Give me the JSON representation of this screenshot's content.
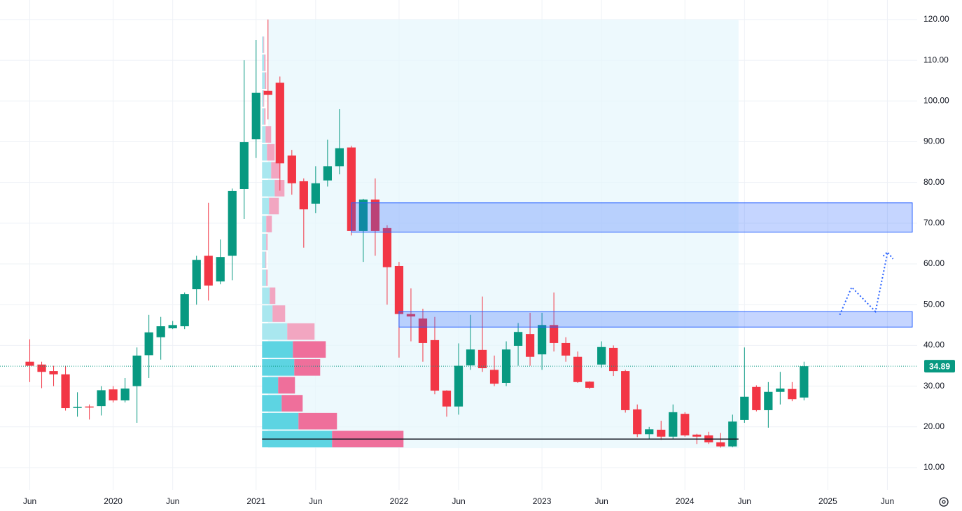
{
  "chart_data": {
    "type": "candlestick",
    "dates": [
      "2019-06",
      "2019-07",
      "2019-08",
      "2019-09",
      "2019-10",
      "2019-11",
      "2019-12",
      "2020-01",
      "2020-02",
      "2020-03",
      "2020-04",
      "2020-05",
      "2020-06",
      "2020-07",
      "2020-08",
      "2020-09",
      "2020-10",
      "2020-11",
      "2020-12",
      "2021-01",
      "2021-02",
      "2021-03",
      "2021-04",
      "2021-05",
      "2021-06",
      "2021-07",
      "2021-08",
      "2021-09",
      "2021-10",
      "2021-11",
      "2021-12",
      "2022-01",
      "2022-02",
      "2022-03",
      "2022-04",
      "2022-05",
      "2022-06",
      "2022-07",
      "2022-08",
      "2022-09",
      "2022-10",
      "2022-11",
      "2022-12",
      "2023-01",
      "2023-02",
      "2023-03",
      "2023-04",
      "2023-05",
      "2023-06",
      "2023-07",
      "2023-08",
      "2023-09",
      "2023-10",
      "2023-11",
      "2023-12",
      "2024-01",
      "2024-02",
      "2024-03",
      "2024-04",
      "2024-05",
      "2024-06",
      "2024-07",
      "2024-08",
      "2024-09",
      "2024-10",
      "2024-11"
    ],
    "open": [
      36,
      35.3,
      33.7,
      32.9,
      24.8,
      25,
      25.1,
      29.2,
      26.5,
      30,
      37.6,
      42,
      44.2,
      44.7,
      53.8,
      62,
      55.7,
      62,
      78.4,
      90.6,
      102.5,
      104.5,
      86.6,
      80.3,
      74.8,
      80.5,
      84,
      88.6,
      68.1,
      75.8,
      68.8,
      59.5,
      47.7,
      46.6,
      41.3,
      28.9,
      25,
      35.1,
      38.9,
      34,
      30.8,
      39.9,
      42.8,
      37.8,
      45,
      40.6,
      37.2,
      31.1,
      35.3,
      39.4,
      33.7,
      24.3,
      18.2,
      19.3,
      17.6,
      23.2,
      18.1,
      17.9,
      16.2,
      15.2,
      21.7,
      29.8,
      24.1,
      28.6,
      29.3,
      27.2
    ],
    "high": [
      41.5,
      36,
      35,
      35,
      28.5,
      25.5,
      30,
      30,
      32,
      39.5,
      47.5,
      47,
      46,
      53,
      62,
      75,
      66,
      78.5,
      110,
      115,
      120,
      106,
      88,
      81,
      84,
      90.5,
      98,
      89,
      76,
      81,
      69.5,
      60.5,
      54,
      49,
      47,
      29,
      40.5,
      47.5,
      52,
      37.5,
      41,
      45.5,
      48,
      48,
      53,
      42,
      38.5,
      31.2,
      41,
      40,
      34,
      25.5,
      20,
      21.5,
      25.5,
      23.6,
      18.3,
      18.8,
      18.5,
      23,
      39.5,
      30.2,
      31,
      33.5,
      31,
      36
    ],
    "low": [
      31,
      29.5,
      30,
      24,
      22.5,
      21.8,
      22.8,
      26,
      26,
      21,
      32,
      36.5,
      44,
      44,
      50,
      51,
      55,
      56,
      71,
      86,
      95.5,
      78,
      77,
      64,
      72.5,
      79,
      82,
      67,
      60.5,
      62,
      50,
      37,
      41,
      36,
      28,
      22.5,
      23,
      34,
      33.5,
      30,
      30,
      35,
      35,
      34,
      38.5,
      36,
      30.8,
      29.3,
      34.5,
      32.5,
      23.5,
      17.5,
      17,
      16.8,
      17,
      17.6,
      15.8,
      15.8,
      14.9,
      15,
      21,
      23.8,
      19.8,
      25.5,
      26.3,
      26.5
    ],
    "close": [
      35,
      33.5,
      32.9,
      24.6,
      24.9,
      24.8,
      29,
      26.5,
      29.4,
      37.5,
      43.2,
      44.7,
      45,
      52.6,
      61,
      54.7,
      61.7,
      77.9,
      89.9,
      102,
      101.5,
      84.7,
      79.8,
      73.4,
      79.8,
      84,
      88.4,
      68.1,
      75.8,
      68.1,
      59.2,
      47.7,
      47.1,
      40.6,
      28.9,
      25,
      35,
      39,
      34.4,
      30.6,
      39,
      43.3,
      37.2,
      45,
      40.6,
      37.5,
      31,
      29.6,
      39.6,
      33.7,
      24.1,
      18.2,
      19.4,
      17.6,
      23.6,
      17.9,
      17.6,
      16.2,
      15.2,
      21.3,
      27.4,
      24.1,
      28.6,
      29.4,
      26.8,
      34.89
    ],
    "up_color": "#089981",
    "down_color": "#f23645",
    "last_price": 34.89,
    "xlim": [
      "2019-04",
      "2025-08"
    ],
    "xticks": [
      {
        "value": "2019-06",
        "label": "Jun"
      },
      {
        "value": "2020-01",
        "label": "2020"
      },
      {
        "value": "2020-06",
        "label": "Jun"
      },
      {
        "value": "2021-01",
        "label": "2021"
      },
      {
        "value": "2021-06",
        "label": "Jun"
      },
      {
        "value": "2022-01",
        "label": "2022"
      },
      {
        "value": "2022-06",
        "label": "Jun"
      },
      {
        "value": "2023-01",
        "label": "2023"
      },
      {
        "value": "2023-06",
        "label": "Jun"
      },
      {
        "value": "2024-01",
        "label": "2024"
      },
      {
        "value": "2024-06",
        "label": "Jun"
      },
      {
        "value": "2025-01",
        "label": "2025"
      },
      {
        "value": "2025-06",
        "label": "Jun"
      }
    ],
    "ylim": [
      4.5,
      124.8
    ],
    "yticks": [
      {
        "value": 10,
        "label": "10.00"
      },
      {
        "value": 20,
        "label": "20.00"
      },
      {
        "value": 30,
        "label": "30.00"
      },
      {
        "value": 40,
        "label": "40.00"
      },
      {
        "value": 50,
        "label": "50.00"
      },
      {
        "value": 60,
        "label": "60.00"
      },
      {
        "value": 70,
        "label": "70.00"
      },
      {
        "value": 80,
        "label": "80.00"
      },
      {
        "value": 90,
        "label": "90.00"
      },
      {
        "value": 100,
        "label": "100.00"
      },
      {
        "value": 110,
        "label": "110.00"
      },
      {
        "value": 120,
        "label": "120.00"
      }
    ],
    "grid": true,
    "profile": {
      "from": "2021-02",
      "to": "2024-05",
      "low": 14.8,
      "high": 120,
      "row_height": 4.4,
      "value_area": [
        14.8,
        41.2
      ],
      "up": [
        100,
        52,
        28,
        23,
        46,
        44,
        36,
        15,
        11,
        6,
        5,
        6,
        6,
        10,
        18,
        13,
        7,
        5,
        3,
        2,
        4,
        3,
        2
      ],
      "down": [
        102,
        55,
        30,
        24,
        37,
        47,
        39,
        18,
        8,
        2,
        1,
        2,
        8,
        14,
        14,
        13,
        11,
        8,
        2,
        1,
        2,
        2,
        1
      ],
      "colors": {
        "up": "#5dd4e2",
        "down": "#ef6f9b",
        "up_outside": "#a9e7ef",
        "down_outside": "#f2a6c1",
        "area": "#e6f6fc"
      }
    },
    "poc": 17,
    "zones": [
      {
        "from": "2021-09",
        "low": 67.8,
        "high": 75,
        "color": "#2962ff"
      },
      {
        "from": "2022-01",
        "low": 44.5,
        "high": 48.3,
        "color": "#2962ff"
      }
    ],
    "projection": {
      "x": [
        "2025-02",
        "2025-03",
        "2025-05",
        "2025-06"
      ],
      "values": [
        47.5,
        54.3,
        48.3,
        62.6
      ],
      "color": "#2962ff"
    }
  }
}
